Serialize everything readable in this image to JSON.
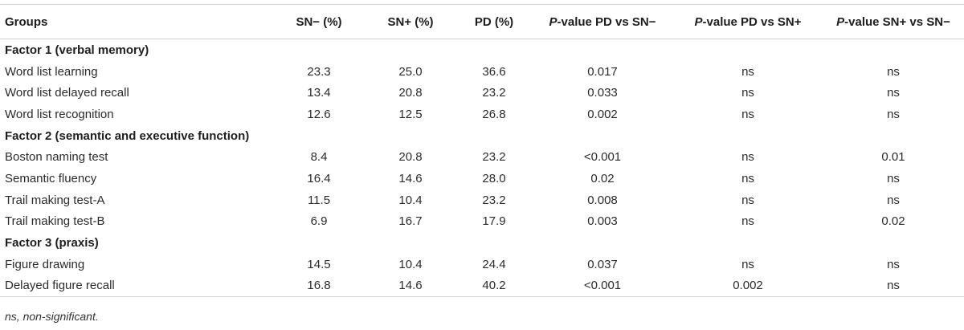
{
  "headers": [
    "Groups",
    "SN− (%)",
    "SN+ (%)",
    "PD (%)",
    "P-value PD vs SN−",
    "P-value PD vs SN+",
    "P-value SN+ vs SN−"
  ],
  "sections": [
    {
      "title": "Factor 1 (verbal memory)",
      "rows": [
        [
          "Word list learning",
          "23.3",
          "25.0",
          "36.6",
          "0.017",
          "ns",
          "ns"
        ],
        [
          "Word list delayed recall",
          "13.4",
          "20.8",
          "23.2",
          "0.033",
          "ns",
          "ns"
        ],
        [
          "Word list recognition",
          "12.6",
          "12.5",
          "26.8",
          "0.002",
          "ns",
          "ns"
        ]
      ]
    },
    {
      "title": "Factor 2 (semantic and executive function)",
      "rows": [
        [
          "Boston naming test",
          "8.4",
          "20.8",
          "23.2",
          "<0.001",
          "ns",
          "0.01"
        ],
        [
          "Semantic fluency",
          "16.4",
          "14.6",
          "28.0",
          "0.02",
          "ns",
          "ns"
        ],
        [
          "Trail making test-A",
          "11.5",
          "10.4",
          "23.2",
          "0.008",
          "ns",
          "ns"
        ],
        [
          "Trail making test-B",
          "6.9",
          "16.7",
          "17.9",
          "0.003",
          "ns",
          "0.02"
        ]
      ]
    },
    {
      "title": "Factor 3 (praxis)",
      "rows": [
        [
          "Figure drawing",
          "14.5",
          "10.4",
          "24.4",
          "0.037",
          "ns",
          "ns"
        ],
        [
          "Delayed figure recall",
          "16.8",
          "14.6",
          "40.2",
          "<0.001",
          "0.002",
          "ns"
        ]
      ]
    }
  ],
  "footnote": "ns, non-significant."
}
